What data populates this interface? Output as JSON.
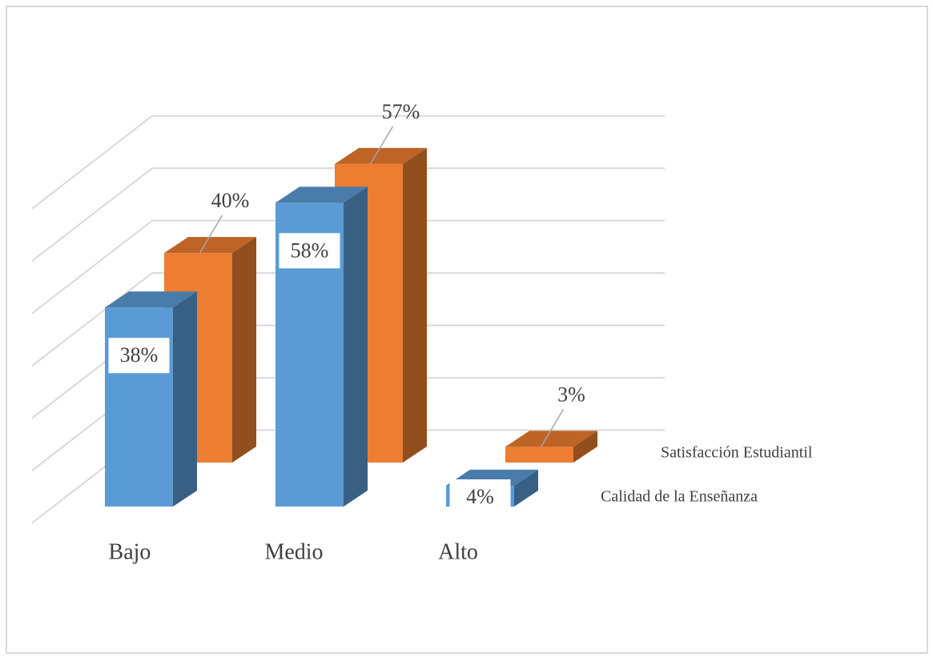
{
  "chart_data": {
    "type": "bar3d",
    "categories": [
      "Bajo",
      "Medio",
      "Alto"
    ],
    "series": [
      {
        "name": "Calidad de la Enseñanza",
        "color": "#5b9bd5",
        "values": [
          38,
          58,
          4
        ],
        "value_labels": [
          "38%",
          "58%",
          "4%"
        ]
      },
      {
        "name": "Satisfacción Estudiantil",
        "color": "#ed7d31",
        "values": [
          40,
          57,
          3
        ],
        "value_labels": [
          "40%",
          "57%",
          "3%"
        ]
      }
    ],
    "ylim": [
      0,
      70
    ],
    "yticks": [
      10,
      20,
      30,
      40,
      50,
      60,
      70
    ],
    "grid": true
  }
}
